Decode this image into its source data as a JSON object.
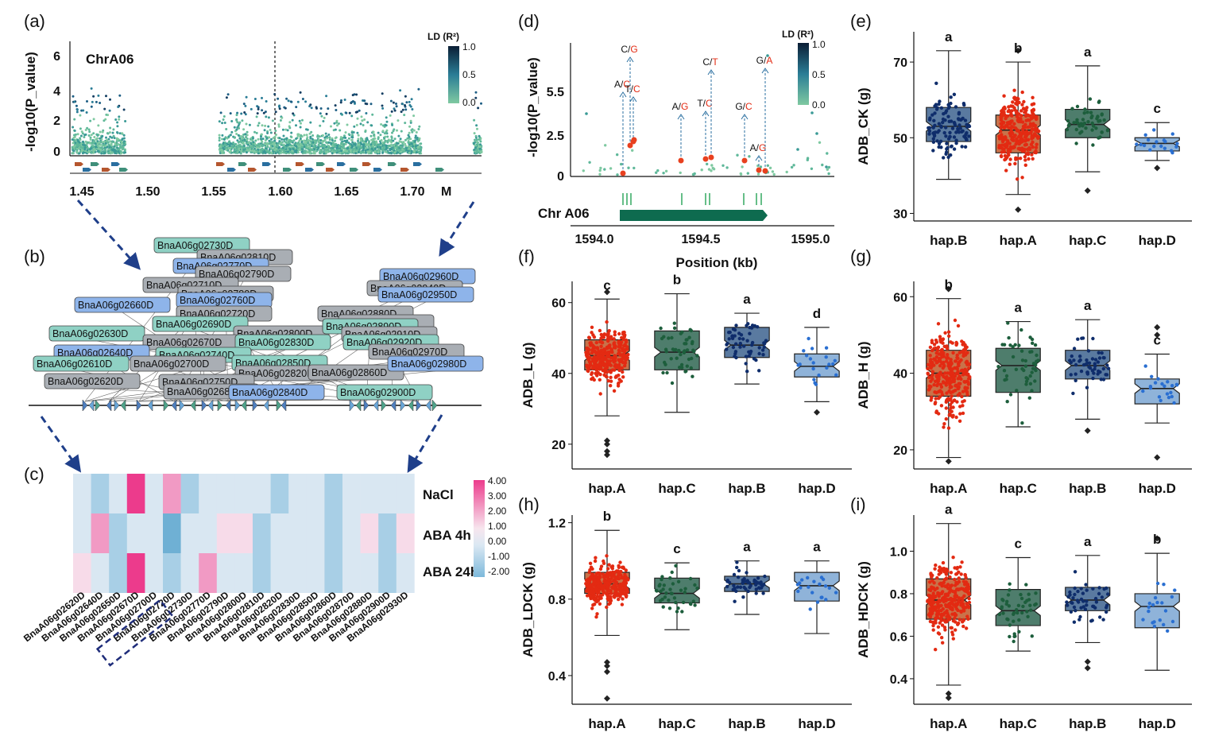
{
  "panels": {
    "a": {
      "label": "(a)",
      "chrom": "ChrA06",
      "ylabel": "-log10(P_value)",
      "yticks": [
        "0",
        "2",
        "4",
        "6"
      ],
      "xticks": [
        "1.45",
        "1.50",
        "1.55",
        "1.60",
        "1.65",
        "1.70"
      ],
      "xunit": "M",
      "legend_title": "LD (R²)",
      "legend_ticks": [
        "1.0",
        "0.5",
        "0.0"
      ]
    },
    "b": {
      "label": "(b)",
      "genes": [
        {
          "id": "BnaA06g02730D",
          "c": "t"
        },
        {
          "id": "BnaA06g02810D",
          "c": "g"
        },
        {
          "id": "BnaA06g02770D",
          "c": "b"
        },
        {
          "id": "BnaA06g02790D",
          "c": "g"
        },
        {
          "id": "BnaA06g02710D",
          "c": "g"
        },
        {
          "id": "BnaA06g02780D",
          "c": "g"
        },
        {
          "id": "BnaA06g02660D",
          "c": "b"
        },
        {
          "id": "BnaA06g02760D",
          "c": "b"
        },
        {
          "id": "BnaA06g02720D",
          "c": "g"
        },
        {
          "id": "BnaA06g02690D",
          "c": "t"
        },
        {
          "id": "BnaA06g02630D",
          "c": "t"
        },
        {
          "id": "BnaA06g02800D",
          "c": "g"
        },
        {
          "id": "BnaA06g02670D",
          "c": "g"
        },
        {
          "id": "BnaA06g02830D",
          "c": "t"
        },
        {
          "id": "BnaA06g02640D",
          "c": "b"
        },
        {
          "id": "BnaA06g02740D",
          "c": "t"
        },
        {
          "id": "BnaA06g02610D",
          "c": "t"
        },
        {
          "id": "BnaA06g02700D",
          "c": "g"
        },
        {
          "id": "BnaA06g02850D",
          "c": "t"
        },
        {
          "id": "BnaA06g02620D",
          "c": "g"
        },
        {
          "id": "BnaA06g02820D",
          "c": "g"
        },
        {
          "id": "BnaA06g02750D",
          "c": "g"
        },
        {
          "id": "BnaA06g02860D",
          "c": "g"
        },
        {
          "id": "BnaA06g02680D",
          "c": "g"
        },
        {
          "id": "BnaA06g02840D",
          "c": "b"
        },
        {
          "id": "BnaA06g02960D",
          "c": "b"
        },
        {
          "id": "BnaA06g02940D",
          "c": "g"
        },
        {
          "id": "BnaA06g02950D",
          "c": "b"
        },
        {
          "id": "BnaA06g02880D",
          "c": "g"
        },
        {
          "id": "BnaA06g02930D",
          "c": "g"
        },
        {
          "id": "BnaA06g02890D",
          "c": "t"
        },
        {
          "id": "BnaA06g02910D",
          "c": "g"
        },
        {
          "id": "BnaA06g02920D",
          "c": "t"
        },
        {
          "id": "BnaA06g02970D",
          "c": "g"
        },
        {
          "id": "BnaA06g02980D",
          "c": "b"
        },
        {
          "id": "BnaA06g02900D",
          "c": "t"
        }
      ]
    },
    "c": {
      "label": "(c)",
      "rows": [
        "NaCl",
        "ABA 4h",
        "ABA 24h"
      ],
      "cols": [
        "BnaA06g02620D",
        "BnaA06g02640D",
        "BnaA06g02650D",
        "BnaA06g02670D",
        "BnaA06g02700D",
        "BnaA06g02720D",
        "BnaA06g02730D",
        "BnaA06g02770D",
        "BnaA06g02790D",
        "BnaA06g02800D",
        "BnaA06g02810D",
        "BnaA06g02820D",
        "BnaA06g02830D",
        "BnaA06g02850D",
        "BnaA06g02860D",
        "BnaA06g02870D",
        "BnaA06g02880D",
        "BnaA06g02900D",
        "BnaA06g02930D"
      ],
      "values": [
        [
          0,
          -1.2,
          0,
          3.8,
          0,
          2.5,
          -1.2,
          0,
          0,
          0,
          0,
          -1.2,
          0,
          0,
          -1.2,
          0,
          0,
          0,
          0
        ],
        [
          0,
          2.3,
          -1.2,
          0,
          0,
          -2.2,
          0,
          0,
          1,
          1,
          -1.2,
          0,
          0,
          0,
          -1.2,
          0,
          1,
          -1.2,
          1
        ],
        [
          1,
          0,
          -1.2,
          4,
          0,
          -1.2,
          0,
          2.5,
          0,
          0,
          -1.2,
          0,
          0,
          0,
          -1.2,
          0,
          0,
          -1.2,
          0
        ]
      ],
      "scale_ticks": [
        "4.00",
        "3.00",
        "2.00",
        "1.00",
        "0.00",
        "-1.00",
        "-2.00"
      ]
    },
    "d": {
      "label": "(d)",
      "ylabel": "-log10(P_value)",
      "yticks": [
        "0",
        "2.5",
        "5.5"
      ],
      "xticks": [
        "1594.0",
        "1594.5",
        "1595.0"
      ],
      "xlabel": "Position (kb)",
      "chrom": "Chr A06",
      "legend_title": "LD (R²)",
      "legend_ticks": [
        "1.0",
        "0.5",
        "0.0"
      ],
      "snps": [
        {
          "ref": "A",
          "alt": "C"
        },
        {
          "ref": "C",
          "alt": "G"
        },
        {
          "ref": "T",
          "alt": "C"
        },
        {
          "ref": "A",
          "alt": "G"
        },
        {
          "ref": "T",
          "alt": "C"
        },
        {
          "ref": "C",
          "alt": "T"
        },
        {
          "ref": "G",
          "alt": "C"
        },
        {
          "ref": "A",
          "alt": "G"
        },
        {
          "ref": "G",
          "alt": "A"
        }
      ]
    }
  },
  "colors": {
    "hapA": "#c9724a",
    "hapB": "#5a7aa0",
    "hapC": "#4e7d6c",
    "hapD": "#8fb3d9",
    "dotA": "#e32a12",
    "dotB": "#0f2d6b",
    "dotC": "#1d5e3c",
    "dotD": "#2a6fd1"
  },
  "chart_data": [
    {
      "panel": "e",
      "type": "box",
      "ylabel": "ADB_CK (g)",
      "yticks": [
        "30",
        "50",
        "70"
      ],
      "ylim": [
        28,
        78
      ],
      "groups": [
        {
          "name": "hap.B",
          "q1": 49,
          "med": 53,
          "q3": 58,
          "lo": 39,
          "hi": 73,
          "sig": "a",
          "n": 110,
          "out": []
        },
        {
          "name": "hap.A",
          "q1": 46,
          "med": 52,
          "q3": 56,
          "lo": 35,
          "hi": 70,
          "sig": "b",
          "n": 300,
          "out": [
            31,
            73
          ]
        },
        {
          "name": "hap.C",
          "q1": 50,
          "med": 53.5,
          "q3": 57.5,
          "lo": 41,
          "hi": 69,
          "sig": "a",
          "n": 50,
          "out": [
            36
          ]
        },
        {
          "name": "hap.D",
          "q1": 46.5,
          "med": 48.5,
          "q3": 50,
          "lo": 44,
          "hi": 54,
          "sig": "c",
          "n": 18,
          "out": [
            42
          ]
        }
      ]
    },
    {
      "panel": "f",
      "type": "box",
      "ylabel": "ADB_L (g)",
      "yticks": [
        "20",
        "40",
        "60"
      ],
      "ylim": [
        13,
        66
      ],
      "groups": [
        {
          "name": "hap.A",
          "q1": 41,
          "med": 45,
          "q3": 49.5,
          "lo": 28,
          "hi": 61,
          "sig": "c",
          "n": 300,
          "out": [
            17,
            18,
            20,
            21,
            63
          ]
        },
        {
          "name": "hap.C",
          "q1": 41,
          "med": 46,
          "q3": 52,
          "lo": 29,
          "hi": 62.5,
          "sig": "b",
          "n": 50,
          "out": []
        },
        {
          "name": "hap.B",
          "q1": 44.5,
          "med": 48,
          "q3": 53,
          "lo": 37,
          "hi": 57,
          "sig": "a",
          "n": 55,
          "out": []
        },
        {
          "name": "hap.D",
          "q1": 39,
          "med": 42,
          "q3": 45.5,
          "lo": 32,
          "hi": 53,
          "sig": "d",
          "n": 20,
          "out": [
            29
          ]
        }
      ]
    },
    {
      "panel": "g",
      "type": "box",
      "ylabel": "ADB_H (g)",
      "yticks": [
        "20",
        "40",
        "60"
      ],
      "ylim": [
        15,
        64
      ],
      "groups": [
        {
          "name": "hap.A",
          "q1": 34,
          "med": 40,
          "q3": 46,
          "lo": 18,
          "hi": 59.5,
          "sig": "b",
          "n": 300,
          "out": [
            17,
            62
          ]
        },
        {
          "name": "hap.C",
          "q1": 35,
          "med": 42,
          "q3": 46.5,
          "lo": 26,
          "hi": 53.5,
          "sig": "a",
          "n": 50,
          "out": []
        },
        {
          "name": "hap.B",
          "q1": 38.5,
          "med": 42,
          "q3": 46,
          "lo": 28,
          "hi": 54,
          "sig": "a",
          "n": 55,
          "out": [
            25
          ]
        },
        {
          "name": "hap.D",
          "q1": 32,
          "med": 36,
          "q3": 38.5,
          "lo": 27,
          "hi": 45,
          "sig": "c",
          "n": 20,
          "out": [
            18,
            50,
            52
          ]
        }
      ]
    },
    {
      "panel": "h",
      "type": "box",
      "ylabel": "ADB_LDCK (g)",
      "yticks": [
        "0.4",
        "0.8",
        "1.2"
      ],
      "ylim": [
        0.25,
        1.24
      ],
      "groups": [
        {
          "name": "hap.A",
          "q1": 0.83,
          "med": 0.88,
          "q3": 0.94,
          "lo": 0.61,
          "hi": 1.16,
          "sig": "b",
          "n": 300,
          "out": [
            0.28,
            0.42,
            0.45,
            0.47
          ]
        },
        {
          "name": "hap.C",
          "q1": 0.78,
          "med": 0.83,
          "q3": 0.91,
          "lo": 0.64,
          "hi": 0.99,
          "sig": "c",
          "n": 40,
          "out": []
        },
        {
          "name": "hap.B",
          "q1": 0.84,
          "med": 0.88,
          "q3": 0.92,
          "lo": 0.72,
          "hi": 1.0,
          "sig": "a",
          "n": 50,
          "out": []
        },
        {
          "name": "hap.D",
          "q1": 0.79,
          "med": 0.87,
          "q3": 0.94,
          "lo": 0.62,
          "hi": 1.0,
          "sig": "a",
          "n": 20,
          "out": []
        }
      ]
    },
    {
      "panel": "i",
      "type": "box",
      "ylabel": "ADB_HDCK (g)",
      "yticks": [
        "0.4",
        "0.6",
        "0.8",
        "1.0"
      ],
      "ylim": [
        0.28,
        1.17
      ],
      "groups": [
        {
          "name": "hap.A",
          "q1": 0.68,
          "med": 0.77,
          "q3": 0.87,
          "lo": 0.37,
          "hi": 1.13,
          "sig": "a",
          "n": 300,
          "out": [
            0.31,
            0.33
          ]
        },
        {
          "name": "hap.C",
          "q1": 0.65,
          "med": 0.72,
          "q3": 0.82,
          "lo": 0.53,
          "hi": 0.97,
          "sig": "c",
          "n": 45,
          "out": []
        },
        {
          "name": "hap.B",
          "q1": 0.72,
          "med": 0.77,
          "q3": 0.83,
          "lo": 0.57,
          "hi": 0.98,
          "sig": "a",
          "n": 50,
          "out": [
            0.45,
            0.48
          ]
        },
        {
          "name": "hap.D",
          "q1": 0.64,
          "med": 0.74,
          "q3": 0.8,
          "lo": 0.44,
          "hi": 0.99,
          "sig": "b",
          "n": 20,
          "out": [
            1.06
          ]
        }
      ]
    }
  ]
}
